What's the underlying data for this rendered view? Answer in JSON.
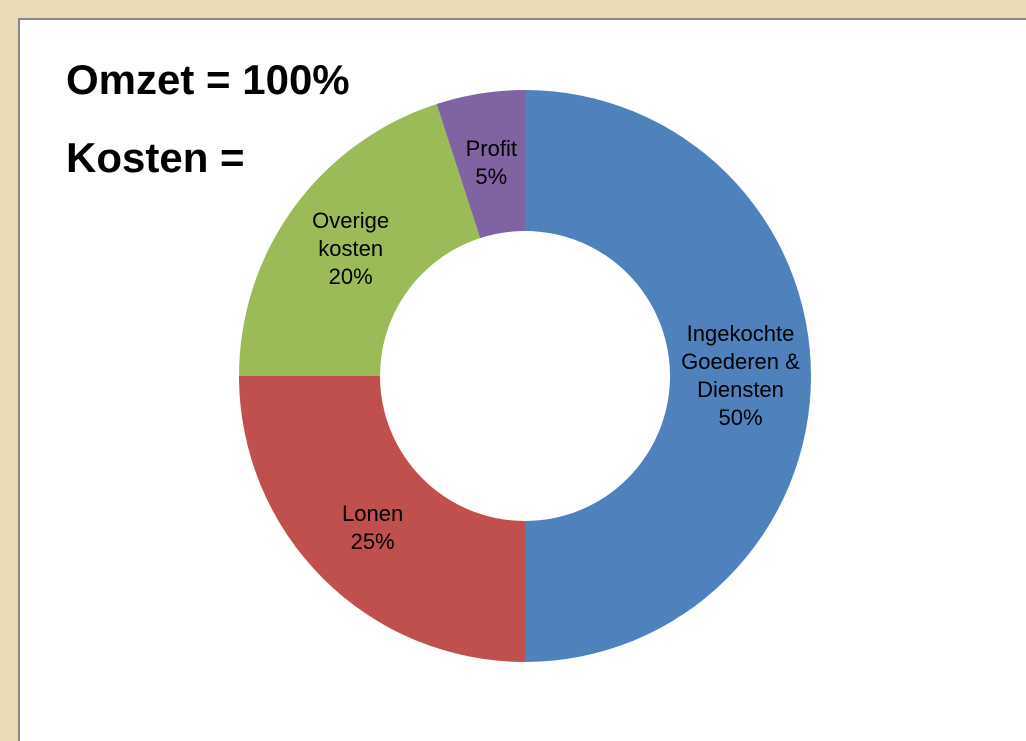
{
  "chart_data": {
    "type": "donut",
    "title": "Omzet = 100%",
    "subtitle": "Kosten =",
    "categories": [
      "Ingekochte Goederen & Diensten",
      "Lonen",
      "Overige kosten",
      "Profit"
    ],
    "values": [
      50,
      25,
      20,
      5
    ],
    "value_labels": [
      "50%",
      "25%",
      "20%",
      "5%"
    ],
    "colors": [
      "#4f81bd",
      "#c0504d",
      "#9bbb59",
      "#8064a2"
    ]
  }
}
